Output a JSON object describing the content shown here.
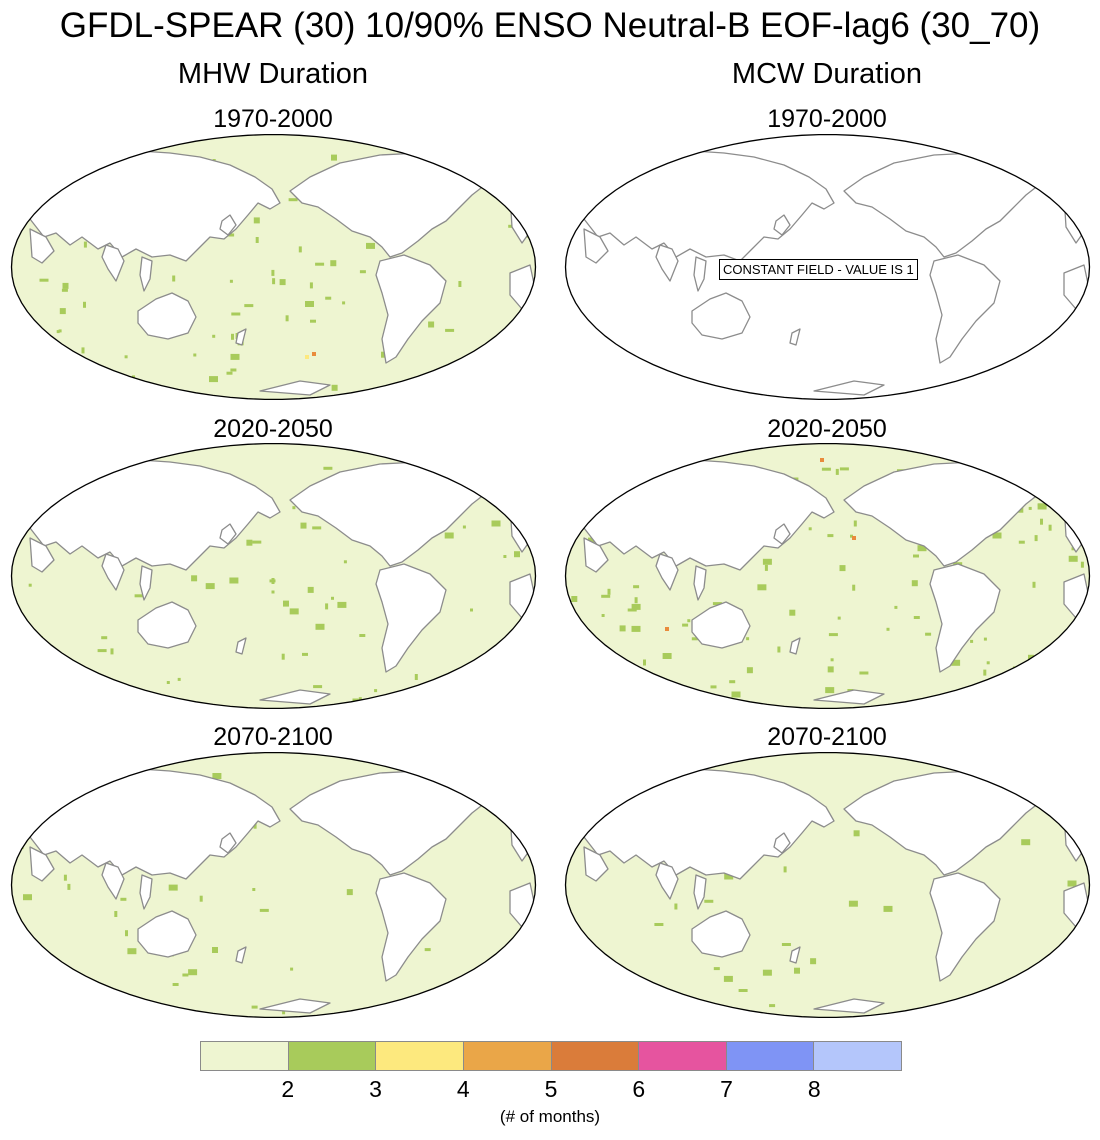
{
  "title": "GFDL-SPEAR (30) 10/90% ENSO Neutral-B EOF-lag6 (30_70)",
  "columns": [
    {
      "title": "MHW Duration",
      "panels": [
        {
          "period": "1970-2000",
          "filled": true,
          "seed": 11,
          "density": 0.05,
          "higher": [
            [
              305,
              355,
              "#fde97e"
            ],
            [
              312,
              352,
              "#e98b3c"
            ]
          ]
        },
        {
          "period": "2020-2050",
          "filled": true,
          "seed": 23,
          "density": 0.045,
          "higher": []
        },
        {
          "period": "2070-2100",
          "filled": true,
          "seed": 37,
          "density": 0.02,
          "higher": []
        }
      ]
    },
    {
      "title": "MCW Duration",
      "panels": [
        {
          "period": "1970-2000",
          "filled": false,
          "note": "CONSTANT FIELD - VALUE IS 1"
        },
        {
          "period": "2020-2050",
          "filled": true,
          "seed": 53,
          "density": 0.065,
          "higher": [
            [
              820,
              458,
              "#e98b3c"
            ],
            [
              852,
              536,
              "#e98b3c"
            ],
            [
              665,
              627,
              "#e98b3c"
            ],
            [
              1040,
              652,
              "#e98b3c"
            ]
          ]
        },
        {
          "period": "2070-2100",
          "filled": true,
          "seed": 71,
          "density": 0.02,
          "higher": []
        }
      ]
    }
  ],
  "colorbar": {
    "colors": [
      "#eef5d1",
      "#a8cb5b",
      "#fde97e",
      "#eaa648",
      "#da7c3a",
      "#e6549f",
      "#7f94f5",
      "#b4c6fb"
    ],
    "labels": [
      "2",
      "3",
      "4",
      "5",
      "6",
      "7",
      "8"
    ],
    "units": "(# of months)"
  }
}
